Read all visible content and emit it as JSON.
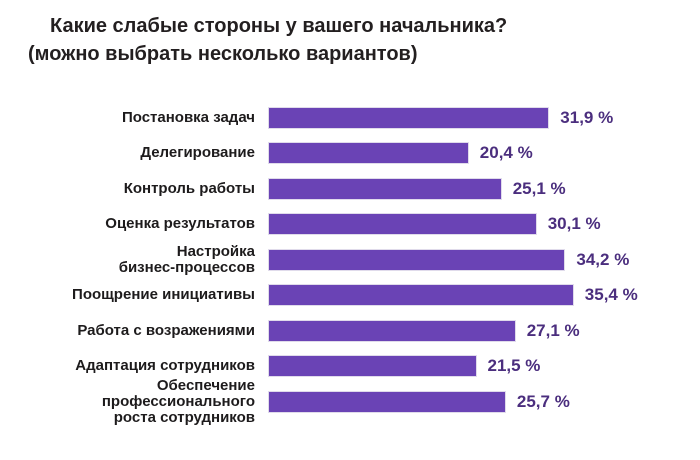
{
  "title": {
    "text": "Какие слабые стороны у вашего начальника?\n(можно выбрать несколько вариантов)"
  },
  "colors": {
    "bar_fill": "#6a43b5",
    "bar_border": "#e0dbeb",
    "value_text": "#4b2e7e",
    "title_text": "#231f20",
    "category_text": "#1d1b1c",
    "background": "#ffffff"
  },
  "chart_data": {
    "type": "bar",
    "orientation": "horizontal",
    "title": "Какие слабые стороны у вашего начальника? (можно выбрать несколько вариантов)",
    "categories": [
      "Постановка задач",
      "Делегирование",
      "Контроль работы",
      "Оценка результатов",
      "Настройка\nбизнес-процессов",
      "Поощрение инициативы",
      "Работа с возражениями",
      "Адаптация сотрудников",
      "Обеспечение\nпрофессионального\nроста сотрудников"
    ],
    "values": [
      31.9,
      20.4,
      25.1,
      30.1,
      34.2,
      35.4,
      27.1,
      21.5,
      25.7
    ],
    "value_labels": [
      "31,9 %",
      "20,4 %",
      "25,1 %",
      "30,1 %",
      "34,2 %",
      "35,4 %",
      "27,1 %",
      "21,5 %",
      "25,7 %"
    ],
    "xlabel": "",
    "ylabel": "",
    "xlim": [
      0,
      40
    ],
    "grid": false,
    "legend": false,
    "data_labels": true
  }
}
